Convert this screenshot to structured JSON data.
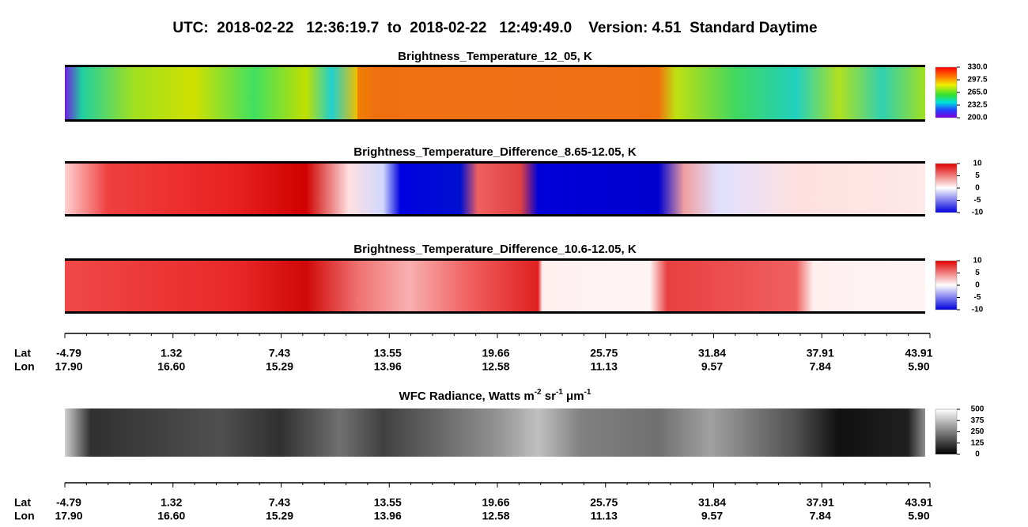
{
  "header": {
    "title": "UTC:  2018-02-22   12:36:19.7  to  2018-02-22   12:49:49.0    Version: 4.51  Standard Daytime"
  },
  "panels": [
    {
      "title": [
        "Brightness_Temperature_12_05, K"
      ],
      "colorbar": [
        "330.0",
        "297.5",
        "265.0",
        "232.5",
        "200.0"
      ]
    },
    {
      "title": [
        "Brightness_Temperature_Difference_8.65-12.05, K"
      ],
      "colorbar": [
        "10",
        "5",
        "0",
        "-5",
        "-10"
      ]
    },
    {
      "title": [
        "Brightness_Temperature_Difference_10.6-12.05, K"
      ],
      "colorbar": [
        "10",
        "5",
        "0",
        "-5",
        "-10"
      ]
    },
    {
      "title": [
        "WFC Radiance, Watts m",
        "-2",
        " sr",
        "-1",
        " μm",
        "-1"
      ],
      "colorbar": [
        "500",
        "375",
        "250",
        "125",
        "0"
      ]
    }
  ],
  "axes": [
    {
      "row_labels": [
        "Lat",
        "Lon"
      ],
      "lat": [
        "-4.79",
        "1.32",
        "7.43",
        "13.55",
        "19.66",
        "25.75",
        "31.84",
        "37.91",
        "43.91"
      ],
      "lon": [
        "17.90",
        "16.60",
        "15.29",
        "13.96",
        "12.58",
        "11.13",
        "9.57",
        "7.84",
        "5.90"
      ]
    },
    {
      "row_labels": [
        "Lat",
        "Lon"
      ],
      "lat": [
        "-4.79",
        "1.32",
        "7.43",
        "13.55",
        "19.66",
        "25.75",
        "31.84",
        "37.91",
        "43.91"
      ],
      "lon": [
        "17.90",
        "16.60",
        "15.29",
        "13.96",
        "12.58",
        "11.13",
        "9.57",
        "7.84",
        "5.90"
      ]
    }
  ]
}
